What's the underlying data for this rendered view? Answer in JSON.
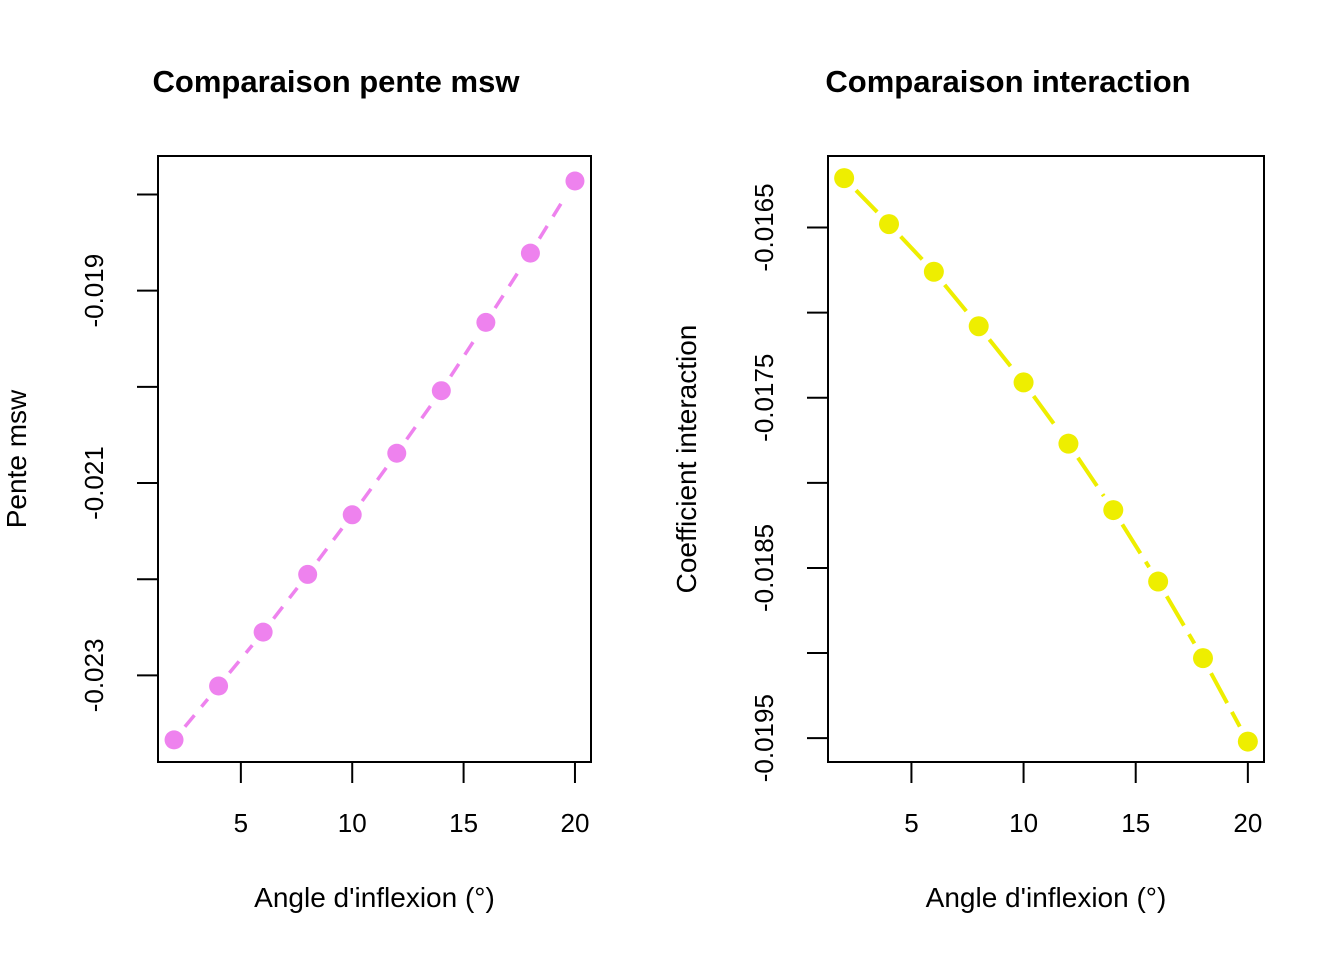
{
  "page": {
    "background_color": "#FFFFFF",
    "text_color": "#000000"
  },
  "chart_data": [
    {
      "type": "line",
      "title": "Comparaison pente msw",
      "xlabel": "Angle d'inflexion (°)",
      "ylabel": "Pente msw",
      "series_name": "pente msw",
      "series_color": "#EE82EE",
      "line_style": "dashed",
      "marker": "filled-circle",
      "grid": false,
      "legend": "none",
      "x": [
        2,
        4,
        6,
        8,
        10,
        12,
        14,
        16,
        18,
        20
      ],
      "y": [
        -0.02367,
        -0.02311,
        -0.02255,
        -0.02195,
        -0.02133,
        -0.02069,
        -0.02004,
        -0.01933,
        -0.01861,
        -0.01786
      ],
      "xlim": [
        1.28,
        20.72
      ],
      "ylim": [
        -0.0239,
        -0.0176
      ],
      "x_ticks": [
        {
          "value": 5,
          "label": "5"
        },
        {
          "value": 10,
          "label": "10"
        },
        {
          "value": 15,
          "label": "15"
        },
        {
          "value": 20,
          "label": "20"
        }
      ],
      "y_ticks": [
        {
          "value": -0.018,
          "label": ""
        },
        {
          "value": -0.019,
          "label": "-0.019"
        },
        {
          "value": -0.02,
          "label": ""
        },
        {
          "value": -0.021,
          "label": "-0.021"
        },
        {
          "value": -0.022,
          "label": ""
        },
        {
          "value": -0.023,
          "label": "-0.023"
        }
      ]
    },
    {
      "type": "line",
      "title": "Comparaison interaction",
      "xlabel": "Angle d'inflexion (°)",
      "ylabel": "Coefficient interaction",
      "series_name": "coefficient interaction",
      "series_color": "#EEEE00",
      "line_style": "long-dashed",
      "marker": "filled-circle",
      "grid": false,
      "legend": "none",
      "x": [
        2,
        4,
        6,
        8,
        10,
        12,
        14,
        16,
        18,
        20
      ],
      "y": [
        -0.01621,
        -0.01648,
        -0.01676,
        -0.01708,
        -0.01741,
        -0.01777,
        -0.01816,
        -0.01858,
        -0.01903,
        -0.01952
      ],
      "xlim": [
        1.28,
        20.72
      ],
      "ylim": [
        -0.01964,
        -0.01608
      ],
      "x_ticks": [
        {
          "value": 5,
          "label": "5"
        },
        {
          "value": 10,
          "label": "10"
        },
        {
          "value": 15,
          "label": "15"
        },
        {
          "value": 20,
          "label": "20"
        }
      ],
      "y_ticks": [
        {
          "value": -0.0165,
          "label": "-0.0165"
        },
        {
          "value": -0.017,
          "label": ""
        },
        {
          "value": -0.0175,
          "label": "-0.0175"
        },
        {
          "value": -0.018,
          "label": ""
        },
        {
          "value": -0.0185,
          "label": "-0.0185"
        },
        {
          "value": -0.019,
          "label": ""
        },
        {
          "value": -0.0195,
          "label": "-0.0195"
        }
      ]
    }
  ]
}
